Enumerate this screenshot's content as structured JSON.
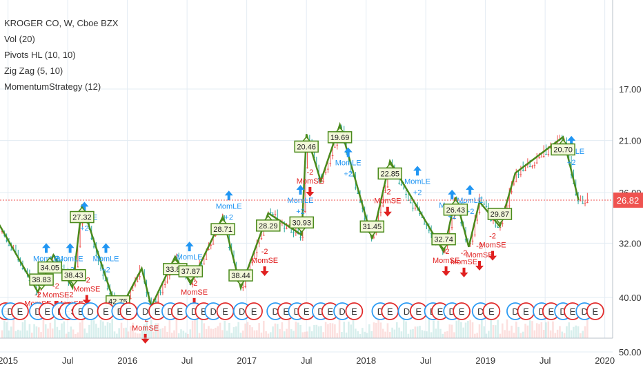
{
  "chart_data": {
    "type": "candlestick",
    "title": "KROGER CO, W, Cboe BZX",
    "indicators": [
      "Vol (20)",
      "Pivots HL (10, 10)",
      "Zig Zag (5, 10)",
      "MomentumStrategy (12)"
    ],
    "last_price": "26.82",
    "y_ticks": [
      "50.00",
      "40.00",
      "32.00",
      "26.00",
      "21.00",
      "17.00"
    ],
    "x_ticks": [
      "2015",
      "Jul",
      "2016",
      "Jul",
      "2017",
      "Jul",
      "2018",
      "Jul",
      "2019",
      "Jul",
      "2020"
    ],
    "x_tick_values": [
      2015.0,
      2015.5,
      2016.0,
      2016.5,
      2017.0,
      2017.5,
      2018.0,
      2018.5,
      2019.0,
      2019.5,
      2020.0
    ],
    "log_scale": true,
    "zigzag": [
      {
        "t": 2014.9,
        "p": 29.0
      },
      {
        "t": 2015.25,
        "p": 39.1
      },
      {
        "t": 2015.38,
        "p": 33.6
      },
      {
        "t": 2015.54,
        "p": 38.4
      },
      {
        "t": 2015.62,
        "p": 27.32
      },
      {
        "t": 2015.92,
        "p": 42.75
      },
      {
        "t": 2016.12,
        "p": 35.5
      },
      {
        "t": 2016.2,
        "p": 41.5
      },
      {
        "t": 2016.4,
        "p": 33.82
      },
      {
        "t": 2016.53,
        "p": 37.8
      },
      {
        "t": 2016.8,
        "p": 28.71
      },
      {
        "t": 2016.95,
        "p": 38.44
      },
      {
        "t": 2017.18,
        "p": 28.29
      },
      {
        "t": 2017.46,
        "p": 30.93
      },
      {
        "t": 2017.5,
        "p": 20.46
      },
      {
        "t": 2017.62,
        "p": 24.8
      },
      {
        "t": 2017.78,
        "p": 19.69
      },
      {
        "t": 2018.05,
        "p": 31.45
      },
      {
        "t": 2018.2,
        "p": 22.85
      },
      {
        "t": 2018.65,
        "p": 33.14
      },
      {
        "t": 2018.75,
        "p": 26.5
      },
      {
        "t": 2018.86,
        "p": 32.5
      },
      {
        "t": 2018.95,
        "p": 27.0
      },
      {
        "t": 2019.12,
        "p": 29.87
      },
      {
        "t": 2019.25,
        "p": 24.0
      },
      {
        "t": 2019.65,
        "p": 20.7
      },
      {
        "t": 2019.78,
        "p": 26.82
      }
    ],
    "price_labels": [
      {
        "t": 2015.28,
        "p": 39.1,
        "text": "38.83",
        "dir": "down"
      },
      {
        "t": 2015.35,
        "p": 33.6,
        "text": "34.05",
        "dir": "up"
      },
      {
        "t": 2015.55,
        "p": 38.4,
        "text": "38.43",
        "dir": "down"
      },
      {
        "t": 2015.62,
        "p": 27.32,
        "text": "27.32",
        "dir": "up"
      },
      {
        "t": 2015.92,
        "p": 42.75,
        "text": "42.75",
        "dir": "down"
      },
      {
        "t": 2016.4,
        "p": 33.82,
        "text": "33.82",
        "dir": "up"
      },
      {
        "t": 2016.53,
        "p": 37.8,
        "text": "37.87",
        "dir": "down"
      },
      {
        "t": 2016.8,
        "p": 28.71,
        "text": "28.71",
        "dir": "up"
      },
      {
        "t": 2016.95,
        "p": 38.44,
        "text": "38.44",
        "dir": "down"
      },
      {
        "t": 2017.18,
        "p": 28.29,
        "text": "28.29",
        "dir": "up"
      },
      {
        "t": 2017.46,
        "p": 30.93,
        "text": "30.93",
        "dir": "down"
      },
      {
        "t": 2017.5,
        "p": 20.46,
        "text": "20.46",
        "dir": "up"
      },
      {
        "t": 2017.78,
        "p": 19.69,
        "text": "19.69",
        "dir": "up"
      },
      {
        "t": 2018.05,
        "p": 31.45,
        "text": "31.45",
        "dir": "down"
      },
      {
        "t": 2018.2,
        "p": 22.85,
        "text": "22.85",
        "dir": "up"
      },
      {
        "t": 2018.65,
        "p": 33.14,
        "text": "32.74",
        "dir": "down"
      },
      {
        "t": 2018.75,
        "p": 26.5,
        "text": "26.43",
        "dir": "up"
      },
      {
        "t": 2019.12,
        "p": 29.87,
        "text": "29.87",
        "dir": "down"
      },
      {
        "t": 2019.65,
        "p": 20.7,
        "text": "20.70",
        "dir": "up"
      }
    ],
    "signals_short": [
      {
        "t": 2015.25,
        "p": 43.0
      },
      {
        "t": 2015.4,
        "p": 41.5
      },
      {
        "t": 2015.52,
        "p": 43.0
      },
      {
        "t": 2015.66,
        "p": 40.5
      },
      {
        "t": 2016.15,
        "p": 47.5
      },
      {
        "t": 2016.56,
        "p": 41.0
      },
      {
        "t": 2017.15,
        "p": 36.0
      },
      {
        "t": 2017.53,
        "p": 26.0
      },
      {
        "t": 2018.18,
        "p": 28.2
      },
      {
        "t": 2018.67,
        "p": 36.0
      },
      {
        "t": 2018.82,
        "p": 36.2
      },
      {
        "t": 2018.95,
        "p": 35.2
      },
      {
        "t": 2019.06,
        "p": 33.8
      }
    ],
    "signals_short_label": "MomSE",
    "signals_short_qty": "-2",
    "signals_long": [
      {
        "t": 2015.32,
        "p": 32.0
      },
      {
        "t": 2015.52,
        "p": 32.0
      },
      {
        "t": 2015.64,
        "p": 27.0
      },
      {
        "t": 2015.82,
        "p": 32.0
      },
      {
        "t": 2016.52,
        "p": 31.8
      },
      {
        "t": 2016.85,
        "p": 25.8
      },
      {
        "t": 2017.45,
        "p": 25.2
      },
      {
        "t": 2017.85,
        "p": 21.6
      },
      {
        "t": 2018.43,
        "p": 23.3
      },
      {
        "t": 2018.72,
        "p": 25.7
      },
      {
        "t": 2018.87,
        "p": 25.2
      },
      {
        "t": 2019.72,
        "p": 20.6
      }
    ],
    "signals_long_label": "MomLE",
    "signals_long_qty": "+2",
    "events": [
      {
        "t": 2014.98,
        "type": "E"
      },
      {
        "t": 2015.02,
        "type": "D"
      },
      {
        "t": 2015.1,
        "type": "E"
      },
      {
        "t": 2015.25,
        "type": "D"
      },
      {
        "t": 2015.33,
        "type": "E"
      },
      {
        "t": 2015.44,
        "type": "D"
      },
      {
        "t": 2015.5,
        "type": "E"
      },
      {
        "t": 2015.55,
        "type": "S"
      },
      {
        "t": 2015.61,
        "type": "E"
      },
      {
        "t": 2015.69,
        "type": "D"
      },
      {
        "t": 2015.82,
        "type": "E"
      },
      {
        "t": 2015.94,
        "type": "D"
      },
      {
        "t": 2016.01,
        "type": "E"
      },
      {
        "t": 2016.15,
        "type": "D"
      },
      {
        "t": 2016.25,
        "type": "E"
      },
      {
        "t": 2016.36,
        "type": "D"
      },
      {
        "t": 2016.44,
        "type": "E"
      },
      {
        "t": 2016.56,
        "type": "D"
      },
      {
        "t": 2016.64,
        "type": "E"
      },
      {
        "t": 2016.72,
        "type": "D"
      },
      {
        "t": 2016.82,
        "type": "E"
      },
      {
        "t": 2016.96,
        "type": "D"
      },
      {
        "t": 2017.06,
        "type": "E"
      },
      {
        "t": 2017.24,
        "type": "D"
      },
      {
        "t": 2017.33,
        "type": "E"
      },
      {
        "t": 2017.42,
        "type": "D"
      },
      {
        "t": 2017.5,
        "type": "E"
      },
      {
        "t": 2017.62,
        "type": "D"
      },
      {
        "t": 2017.7,
        "type": "E"
      },
      {
        "t": 2017.8,
        "type": "D"
      },
      {
        "t": 2017.9,
        "type": "E"
      },
      {
        "t": 2018.12,
        "type": "D"
      },
      {
        "t": 2018.2,
        "type": "E"
      },
      {
        "t": 2018.34,
        "type": "D"
      },
      {
        "t": 2018.44,
        "type": "E"
      },
      {
        "t": 2018.56,
        "type": "D"
      },
      {
        "t": 2018.62,
        "type": "E"
      },
      {
        "t": 2018.72,
        "type": "D"
      },
      {
        "t": 2018.8,
        "type": "E"
      },
      {
        "t": 2018.96,
        "type": "D"
      },
      {
        "t": 2019.05,
        "type": "E"
      },
      {
        "t": 2019.25,
        "type": "D"
      },
      {
        "t": 2019.34,
        "type": "E"
      },
      {
        "t": 2019.47,
        "type": "D"
      },
      {
        "t": 2019.55,
        "type": "E"
      },
      {
        "t": 2019.65,
        "type": "D"
      },
      {
        "t": 2019.73,
        "type": "E"
      },
      {
        "t": 2019.83,
        "type": "D"
      },
      {
        "t": 2019.92,
        "type": "E"
      }
    ]
  },
  "colors": {
    "up": "#26a69a",
    "down": "#ef5350",
    "zigzag": "#4a8a1c",
    "label_border": "#4a8a1c",
    "label_fill": "#f2f7d9",
    "short": "#e02020",
    "long": "#2196f3",
    "price_tag": "#ef5350",
    "grid": "#e3ecf3",
    "axis_text": "#333333"
  }
}
